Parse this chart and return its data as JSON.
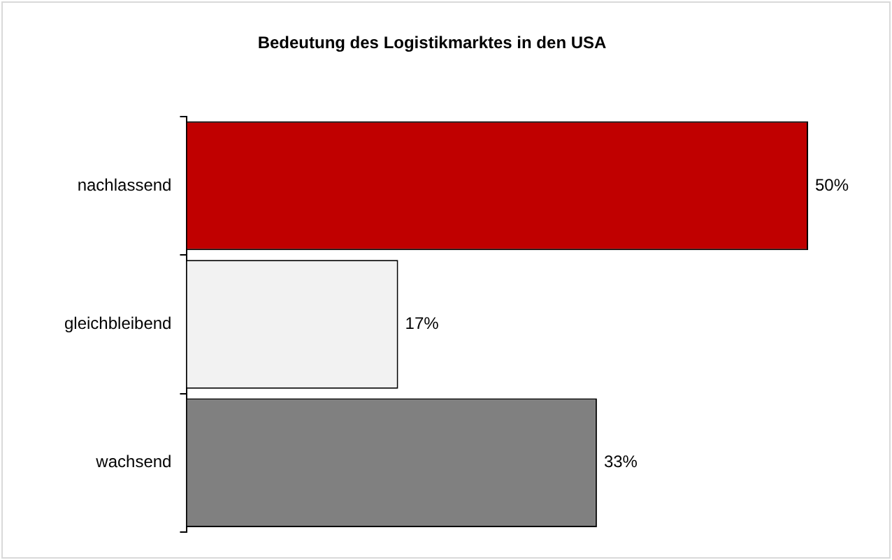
{
  "chart_data": {
    "type": "bar",
    "orientation": "horizontal",
    "title": "Bedeutung des Logistikmarktes in den USA",
    "categories": [
      "nachlassend",
      "gleichbleibend",
      "wachsend"
    ],
    "values": [
      50,
      17,
      33
    ],
    "colors": [
      "#c00000",
      "#f2f2f2",
      "#808080"
    ],
    "value_labels": [
      "50%",
      "17%",
      "33%"
    ],
    "legend": false
  }
}
